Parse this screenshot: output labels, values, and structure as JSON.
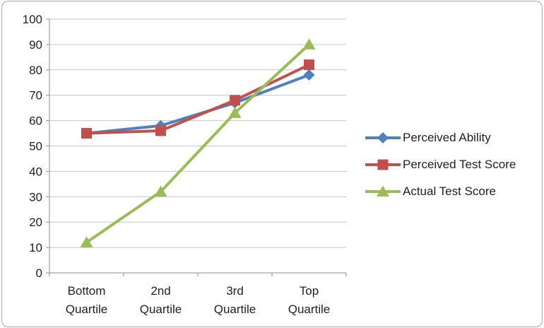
{
  "chart_data": {
    "type": "line",
    "title": "",
    "xlabel": "",
    "ylabel": "",
    "categories": [
      "Bottom Quartile",
      "2nd Quartile",
      "3rd Quartile",
      "Top Quartile"
    ],
    "series": [
      {
        "name": "Perceived Ability",
        "color": "#4F81BD",
        "marker": "diamond",
        "values": [
          55,
          58,
          67,
          78
        ]
      },
      {
        "name": "Perceived Test Score",
        "color": "#C0504D",
        "marker": "square",
        "values": [
          55,
          56,
          68,
          82
        ]
      },
      {
        "name": "Actual Test Score",
        "color": "#9BBB59",
        "marker": "triangle",
        "values": [
          12,
          32,
          63,
          90
        ]
      }
    ],
    "ylim": [
      0,
      100
    ],
    "yticks": [
      0,
      10,
      20,
      30,
      40,
      50,
      60,
      70,
      80,
      90,
      100
    ],
    "grid": true,
    "legend_position": "right"
  },
  "styles": {
    "grid_color": "#C6C6C6",
    "axis_color": "#8C8C8C",
    "text_color": "#1F1F1F",
    "border_color": "#A6A6A6",
    "background": "#FFFFFF"
  }
}
